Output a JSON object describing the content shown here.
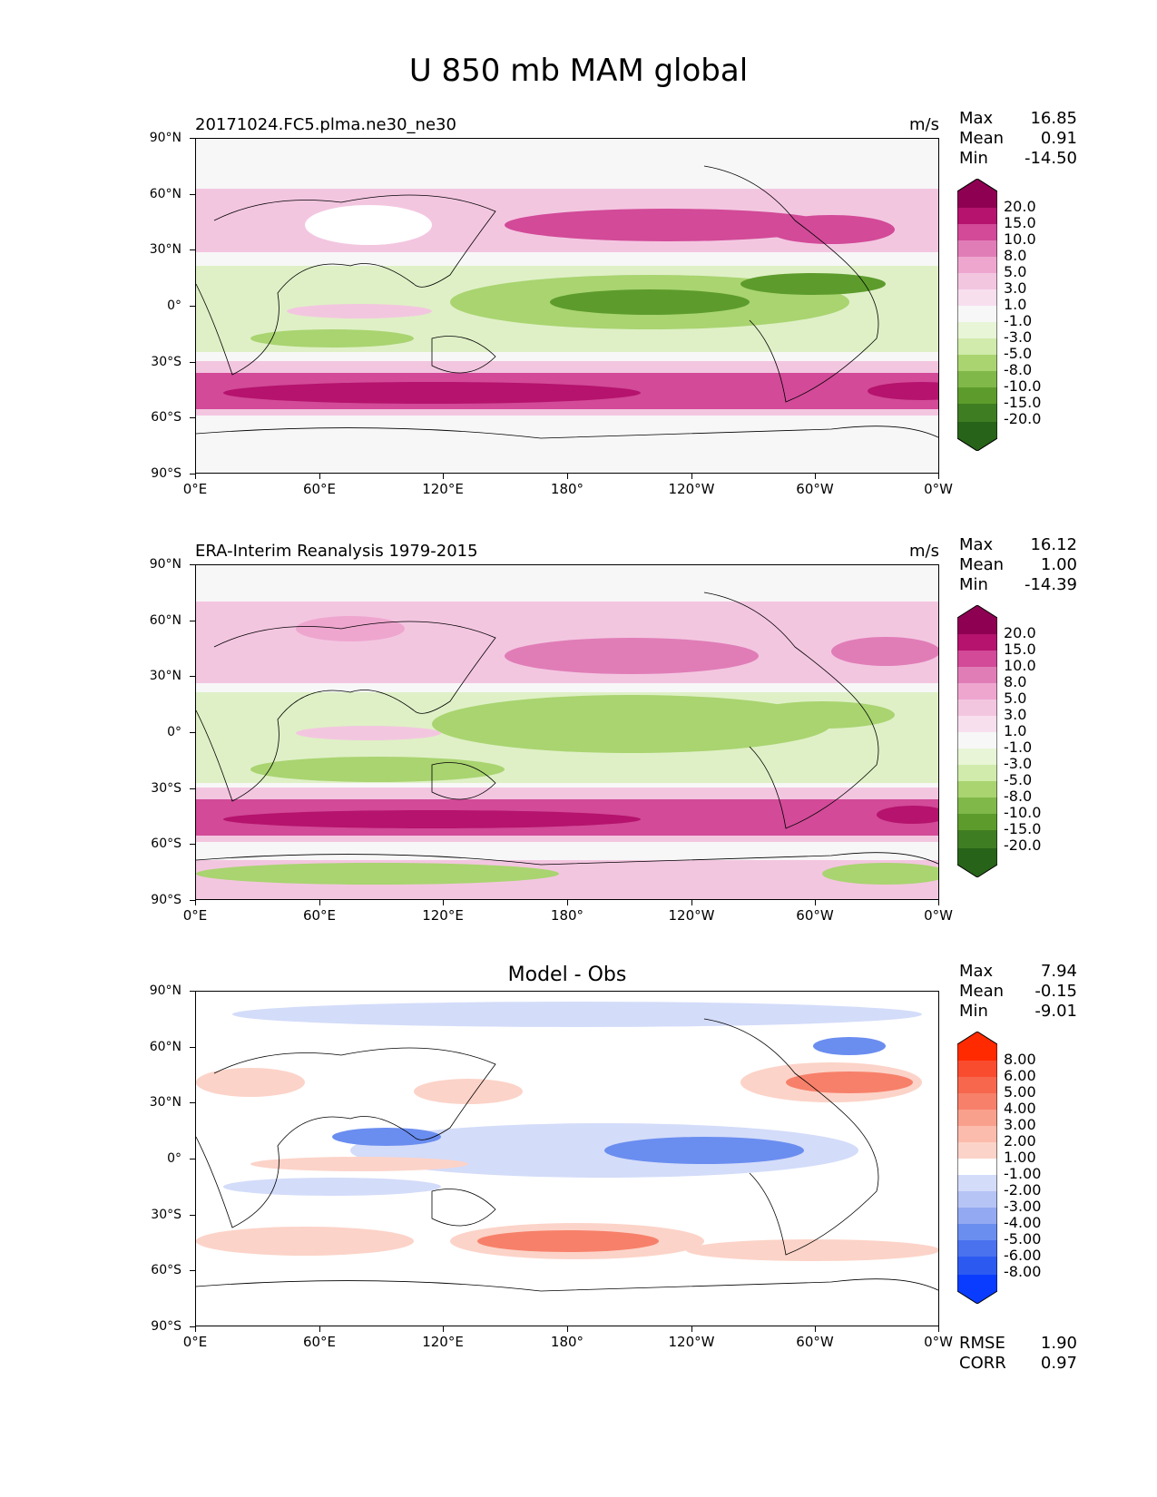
{
  "title": "U 850 mb MAM global",
  "x_ticks": [
    "0°E",
    "60°E",
    "120°E",
    "180°",
    "120°W",
    "60°W",
    "0°W"
  ],
  "y_ticks": [
    "90°N",
    "60°N",
    "30°N",
    "0°",
    "30°S",
    "60°S",
    "90°S"
  ],
  "colors": {
    "pos_strong": "#b5136d",
    "pos_mid": "#d24a98",
    "pos_light": "#f3c6e0",
    "neutral": "#f7f7f7",
    "neg_light": "#dff0c6",
    "neg_mid": "#a9d470",
    "neg_strong": "#5d9c2c",
    "diff_pos": "#f7806a",
    "diff_pos_light": "#fcd3c8",
    "diff_neg": "#6a8df0",
    "diff_neg_light": "#d3dcf9",
    "land_line": "#000000"
  },
  "panels": [
    {
      "label": "20171024.FC5.plma.ne30_ne30",
      "units": "m/s",
      "stats": [
        {
          "name": "Max",
          "value": "16.85"
        },
        {
          "name": "Mean",
          "value": "0.91"
        },
        {
          "name": "Min",
          "value": "-14.50"
        }
      ],
      "colorbar": [
        "20.0",
        "15.0",
        "10.0",
        "8.0",
        "5.0",
        "3.0",
        "1.0",
        "-1.0",
        "-3.0",
        "-5.0",
        "-8.0",
        "-10.0",
        "-15.0",
        "-20.0"
      ]
    },
    {
      "label": "ERA-Interim Reanalysis 1979-2015",
      "units": "m/s",
      "stats": [
        {
          "name": "Max",
          "value": "16.12"
        },
        {
          "name": "Mean",
          "value": "1.00"
        },
        {
          "name": "Min",
          "value": "-14.39"
        }
      ],
      "colorbar": [
        "20.0",
        "15.0",
        "10.0",
        "8.0",
        "5.0",
        "3.0",
        "1.0",
        "-1.0",
        "-3.0",
        "-5.0",
        "-8.0",
        "-10.0",
        "-15.0",
        "-20.0"
      ]
    },
    {
      "title": "Model - Obs",
      "stats": [
        {
          "name": "Max",
          "value": "7.94"
        },
        {
          "name": "Mean",
          "value": "-0.15"
        },
        {
          "name": "Min",
          "value": "-9.01"
        }
      ],
      "colorbar": [
        "8.00",
        "6.00",
        "5.00",
        "4.00",
        "3.00",
        "2.00",
        "1.00",
        "-1.00",
        "-2.00",
        "-3.00",
        "-4.00",
        "-5.00",
        "-6.00",
        "-8.00"
      ],
      "extra_stats": [
        {
          "name": "RMSE",
          "value": "1.90"
        },
        {
          "name": "CORR",
          "value": "0.97"
        }
      ]
    }
  ]
}
